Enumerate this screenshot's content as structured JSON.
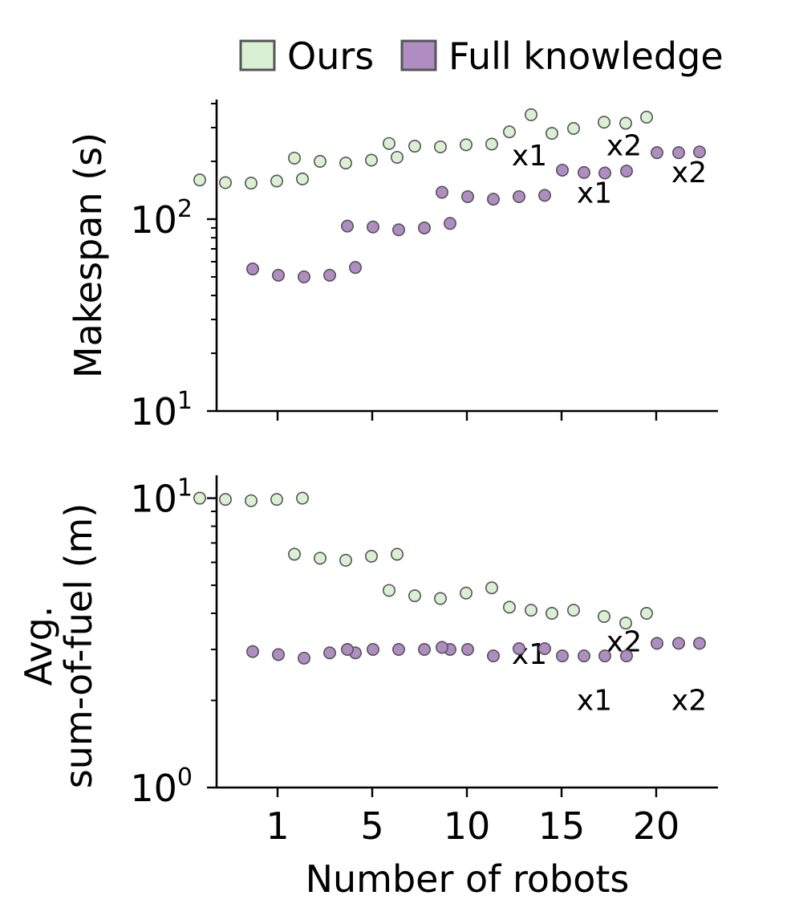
{
  "legend": {
    "items": [
      {
        "label": "Ours",
        "color": "#d9f0d3"
      },
      {
        "label": "Full knowledge",
        "color": "#af8dc3"
      }
    ],
    "placement": "top-right"
  },
  "chart_data": [
    {
      "type": "scatter",
      "ylabel": "Makespan (s)",
      "yscale": "log",
      "ylim": [
        10,
        420
      ],
      "y_ticks": [
        {
          "value": 10,
          "base": "10",
          "exp": "1"
        },
        {
          "value": 100,
          "base": "10",
          "exp": "2"
        }
      ],
      "x_ticks": [
        "1",
        "5",
        "10",
        "15",
        "20"
      ],
      "show_x_tick_labels": false,
      "grid": false,
      "series": [
        {
          "name": "Ours",
          "color": "#d9f0d3",
          "groups": [
            {
              "robots": "1",
              "values": [
                160,
                155,
                154,
                158,
                162
              ]
            },
            {
              "robots": "5",
              "values": [
                208,
                200,
                196,
                203,
                210
              ]
            },
            {
              "robots": "10",
              "values": [
                248,
                240,
                238,
                244,
                246
              ]
            },
            {
              "robots": "15",
              "values": [
                285,
                350,
                280,
                297
              ],
              "x_label": "x1"
            },
            {
              "robots": "20",
              "values": [
                320,
                316,
                340
              ],
              "x_label": "x2"
            }
          ]
        },
        {
          "name": "Full knowledge",
          "color": "#af8dc3",
          "groups": [
            {
              "robots": "1",
              "values": [
                55,
                51,
                50,
                51,
                56
              ]
            },
            {
              "robots": "5",
              "values": [
                92,
                91,
                88,
                90,
                95
              ]
            },
            {
              "robots": "10",
              "values": [
                138,
                131,
                127,
                131,
                133
              ]
            },
            {
              "robots": "15",
              "values": [
                180,
                175,
                174,
                178
              ],
              "x_label": "x1"
            },
            {
              "robots": "20",
              "values": [
                222,
                222,
                224
              ],
              "x_label": "x2"
            }
          ]
        }
      ]
    },
    {
      "type": "scatter",
      "ylabel_lines": [
        "Avg.",
        "sum-of-fuel (m)"
      ],
      "yscale": "log",
      "ylim": [
        1,
        12
      ],
      "y_ticks": [
        {
          "value": 1,
          "base": "10",
          "exp": "0"
        },
        {
          "value": 10,
          "base": "10",
          "exp": "1"
        }
      ],
      "x_ticks": [
        "1",
        "5",
        "10",
        "15",
        "20"
      ],
      "xlabel": "Number of robots",
      "grid": false,
      "series": [
        {
          "name": "Ours",
          "color": "#d9f0d3",
          "groups": [
            {
              "robots": "1",
              "values": [
                10.0,
                9.9,
                9.8,
                9.9,
                10.0
              ]
            },
            {
              "robots": "5",
              "values": [
                6.4,
                6.2,
                6.1,
                6.3,
                6.4
              ]
            },
            {
              "robots": "10",
              "values": [
                4.8,
                4.6,
                4.5,
                4.7,
                4.9
              ]
            },
            {
              "robots": "15",
              "values": [
                4.2,
                4.1,
                4.0,
                4.1
              ],
              "x_label": "x1"
            },
            {
              "robots": "20",
              "values": [
                3.9,
                3.7,
                4.0
              ],
              "x_label": "x2"
            }
          ]
        },
        {
          "name": "Full knowledge",
          "color": "#af8dc3",
          "groups": [
            {
              "robots": "1",
              "values": [
                2.95,
                2.88,
                2.8,
                2.92,
                2.92
              ]
            },
            {
              "robots": "5",
              "values": [
                3.0,
                3.0,
                3.0,
                3.0,
                3.0
              ]
            },
            {
              "robots": "10",
              "values": [
                3.05,
                3.0,
                2.85,
                3.02,
                3.02
              ]
            },
            {
              "robots": "15",
              "values": [
                2.85,
                2.85,
                2.85,
                2.85
              ],
              "x_label": "x1"
            },
            {
              "robots": "20",
              "values": [
                3.15,
                3.15,
                3.15
              ],
              "x_label": "x2"
            }
          ]
        }
      ]
    }
  ]
}
